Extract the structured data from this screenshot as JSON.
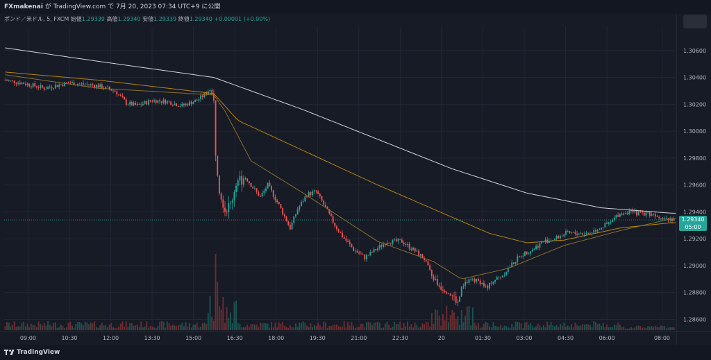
{
  "header": {
    "publisher": "FXmakenai",
    "published_text": " が TradingView.com で 7月 20, 2023 07:34 UTC+9 に公開"
  },
  "legend": {
    "symbol": "ポンド／米ドル, 5, FXCM",
    "open_label": "始値",
    "open": "1.29339",
    "high_label": "高値",
    "high": "1.29340",
    "low_label": "安値",
    "low": "1.29339",
    "close_label": "終値",
    "close": "1.29340",
    "change": "+0.00001 (+0.00%)"
  },
  "footer": {
    "brand": "TradingView"
  },
  "price_tag": {
    "price": "1.29340",
    "countdown": "05:00"
  },
  "colors": {
    "background": "#171b26",
    "up": "#26a69a",
    "down": "#ef5350",
    "ma_long": "#d1d4dc",
    "ma_mid": "#b8860b",
    "ma_short": "#8b6f2a"
  },
  "chart_data": {
    "type": "candlestick",
    "title": "",
    "x_ticks": [
      "09:00",
      "10:30",
      "12:00",
      "13:30",
      "15:00",
      "16:30",
      "18:00",
      "19:30",
      "21:00",
      "22:30",
      "20",
      "01:30",
      "03:00",
      "04:30",
      "06:00",
      "08:00"
    ],
    "y_ticks": [
      "1.30600",
      "1.30400",
      "1.30200",
      "1.30000",
      "1.29800",
      "1.29600",
      "1.29400",
      "1.29200",
      "1.29000",
      "1.28800",
      "1.28600"
    ],
    "ylim": [
      1.2852,
      1.3078
    ],
    "last_price": 1.2934,
    "price_path": [
      [
        0,
        1.3038
      ],
      [
        10,
        1.3036
      ],
      [
        22,
        1.3032
      ],
      [
        35,
        1.3036
      ],
      [
        50,
        1.3034
      ],
      [
        60,
        1.303
      ],
      [
        66,
        1.3021
      ],
      [
        72,
        1.3019
      ],
      [
        80,
        1.3023
      ],
      [
        88,
        1.3022
      ],
      [
        96,
        1.3019
      ],
      [
        104,
        1.3023
      ],
      [
        108,
        1.3027
      ],
      [
        111,
        1.3032
      ],
      [
        113,
        1.3021
      ],
      [
        114,
        1.2985
      ],
      [
        116,
        1.2958
      ],
      [
        119,
        1.2942
      ],
      [
        122,
        1.2945
      ],
      [
        125,
        1.2962
      ],
      [
        130,
        1.2966
      ],
      [
        134,
        1.2958
      ],
      [
        138,
        1.2951
      ],
      [
        142,
        1.296
      ],
      [
        148,
        1.2945
      ],
      [
        154,
        1.2928
      ],
      [
        158,
        1.2942
      ],
      [
        163,
        1.2953
      ],
      [
        168,
        1.2955
      ],
      [
        173,
        1.2943
      ],
      [
        178,
        1.293
      ],
      [
        182,
        1.2922
      ],
      [
        188,
        1.2912
      ],
      [
        194,
        1.2906
      ],
      [
        200,
        1.2912
      ],
      [
        206,
        1.2918
      ],
      [
        214,
        1.2918
      ],
      [
        220,
        1.2912
      ],
      [
        226,
        1.2905
      ],
      [
        230,
        1.2892
      ],
      [
        234,
        1.2885
      ],
      [
        238,
        1.2882
      ],
      [
        242,
        1.2876
      ],
      [
        244,
        1.2872
      ],
      [
        246,
        1.2882
      ],
      [
        250,
        1.289
      ],
      [
        256,
        1.2888
      ],
      [
        260,
        1.2883
      ],
      [
        262,
        1.2888
      ],
      [
        268,
        1.2893
      ],
      [
        273,
        1.2901
      ],
      [
        278,
        1.2908
      ],
      [
        284,
        1.2912
      ],
      [
        290,
        1.2918
      ],
      [
        296,
        1.292
      ],
      [
        302,
        1.2924
      ],
      [
        308,
        1.2924
      ],
      [
        314,
        1.2924
      ],
      [
        320,
        1.2928
      ],
      [
        326,
        1.2932
      ],
      [
        330,
        1.2938
      ],
      [
        334,
        1.294
      ],
      [
        340,
        1.2939
      ],
      [
        346,
        1.2939
      ],
      [
        350,
        1.2938
      ],
      [
        354,
        1.2936
      ],
      [
        358,
        1.2935
      ]
    ],
    "ma_long_path": [
      [
        0,
        1.3062
      ],
      [
        50,
        1.3052
      ],
      [
        112,
        1.304
      ],
      [
        160,
        1.3016
      ],
      [
        200,
        1.2994
      ],
      [
        240,
        1.2972
      ],
      [
        280,
        1.2954
      ],
      [
        320,
        1.2943
      ],
      [
        358,
        1.2939
      ]
    ],
    "ma_mid_path": [
      [
        0,
        1.3044
      ],
      [
        50,
        1.3038
      ],
      [
        112,
        1.3028
      ],
      [
        125,
        1.3008
      ],
      [
        150,
        1.2992
      ],
      [
        175,
        1.2976
      ],
      [
        200,
        1.296
      ],
      [
        230,
        1.2942
      ],
      [
        260,
        1.2924
      ],
      [
        280,
        1.2917
      ],
      [
        300,
        1.2919
      ],
      [
        330,
        1.2928
      ],
      [
        358,
        1.2932
      ]
    ],
    "ma_short_path": [
      [
        0,
        1.3042
      ],
      [
        50,
        1.3032
      ],
      [
        112,
        1.3027
      ],
      [
        118,
        1.3015
      ],
      [
        132,
        1.2978
      ],
      [
        160,
        1.2954
      ],
      [
        200,
        1.2918
      ],
      [
        230,
        1.2903
      ],
      [
        245,
        1.289
      ],
      [
        270,
        1.2898
      ],
      [
        300,
        1.2915
      ],
      [
        330,
        1.2926
      ],
      [
        358,
        1.2935
      ]
    ]
  }
}
